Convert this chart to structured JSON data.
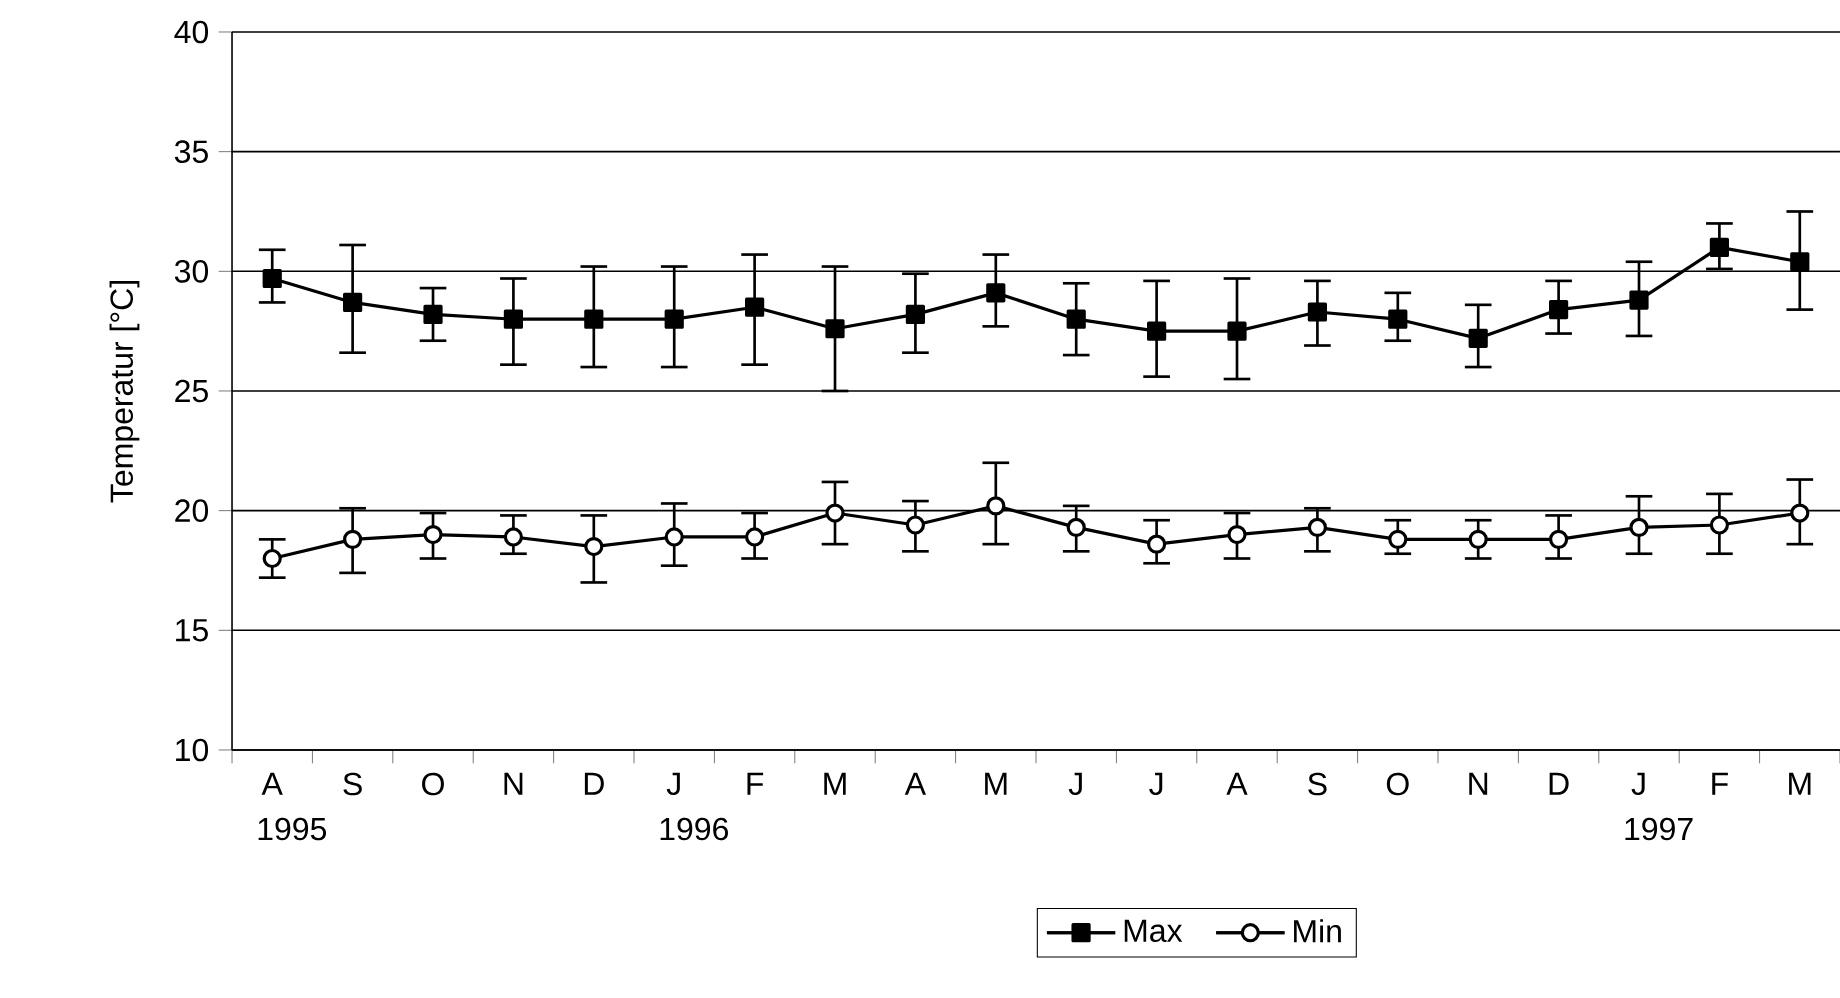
{
  "chart_data": {
    "type": "line",
    "ylabel": "Temperatur [°C]",
    "categories": [
      "A 1995",
      "S",
      "O",
      "N",
      "D",
      "J 1996",
      "F",
      "M",
      "A",
      "M",
      "J",
      "J",
      "A",
      "S",
      "O",
      "N",
      "D",
      "J 1997",
      "F",
      "M"
    ],
    "series": [
      {
        "name": "Max",
        "color": "#000000",
        "marker": "square",
        "values": [
          29.7,
          28.7,
          28.2,
          28.0,
          28.0,
          28.0,
          28.5,
          27.6,
          28.2,
          29.1,
          28.0,
          27.5,
          27.5,
          28.3,
          28.0,
          27.2,
          28.4,
          28.8,
          31.0,
          30.4
        ],
        "errors": [
          [
            28.7,
            30.9
          ],
          [
            26.6,
            31.1
          ],
          [
            27.1,
            29.3
          ],
          [
            26.1,
            29.7
          ],
          [
            26.0,
            30.2
          ],
          [
            26.0,
            30.2
          ],
          [
            26.1,
            30.7
          ],
          [
            25.0,
            30.2
          ],
          [
            26.6,
            29.9
          ],
          [
            27.7,
            30.7
          ],
          [
            26.5,
            29.5
          ],
          [
            25.6,
            29.6
          ],
          [
            25.5,
            29.7
          ],
          [
            26.9,
            29.6
          ],
          [
            27.1,
            29.1
          ],
          [
            26.0,
            28.6
          ],
          [
            27.4,
            29.6
          ],
          [
            27.3,
            30.4
          ],
          [
            30.1,
            32.0
          ],
          [
            28.4,
            32.5
          ]
        ]
      },
      {
        "name": "Min",
        "color": "#000000",
        "marker": "circle",
        "values": [
          18.0,
          18.8,
          19.0,
          18.9,
          18.5,
          18.9,
          18.9,
          19.9,
          19.4,
          20.2,
          19.3,
          18.6,
          19.0,
          19.3,
          18.8,
          18.8,
          18.8,
          19.3,
          19.4,
          19.9
        ],
        "errors": [
          [
            17.2,
            18.8
          ],
          [
            17.4,
            20.1
          ],
          [
            18.0,
            19.9
          ],
          [
            18.2,
            19.8
          ],
          [
            17.0,
            19.8
          ],
          [
            17.7,
            20.3
          ],
          [
            18.0,
            19.9
          ],
          [
            18.6,
            21.2
          ],
          [
            18.3,
            20.4
          ],
          [
            18.6,
            22.0
          ],
          [
            18.3,
            20.2
          ],
          [
            17.8,
            19.6
          ],
          [
            18.0,
            19.9
          ],
          [
            18.3,
            20.1
          ],
          [
            18.2,
            19.6
          ],
          [
            18.0,
            19.6
          ],
          [
            18.0,
            19.8
          ],
          [
            18.2,
            20.6
          ],
          [
            18.2,
            20.7
          ],
          [
            18.6,
            21.3
          ]
        ]
      }
    ],
    "ylim": [
      10,
      40
    ],
    "yticks": [
      10,
      15,
      20,
      25,
      30,
      35,
      40
    ],
    "grid": "y",
    "legend": "bottom"
  }
}
